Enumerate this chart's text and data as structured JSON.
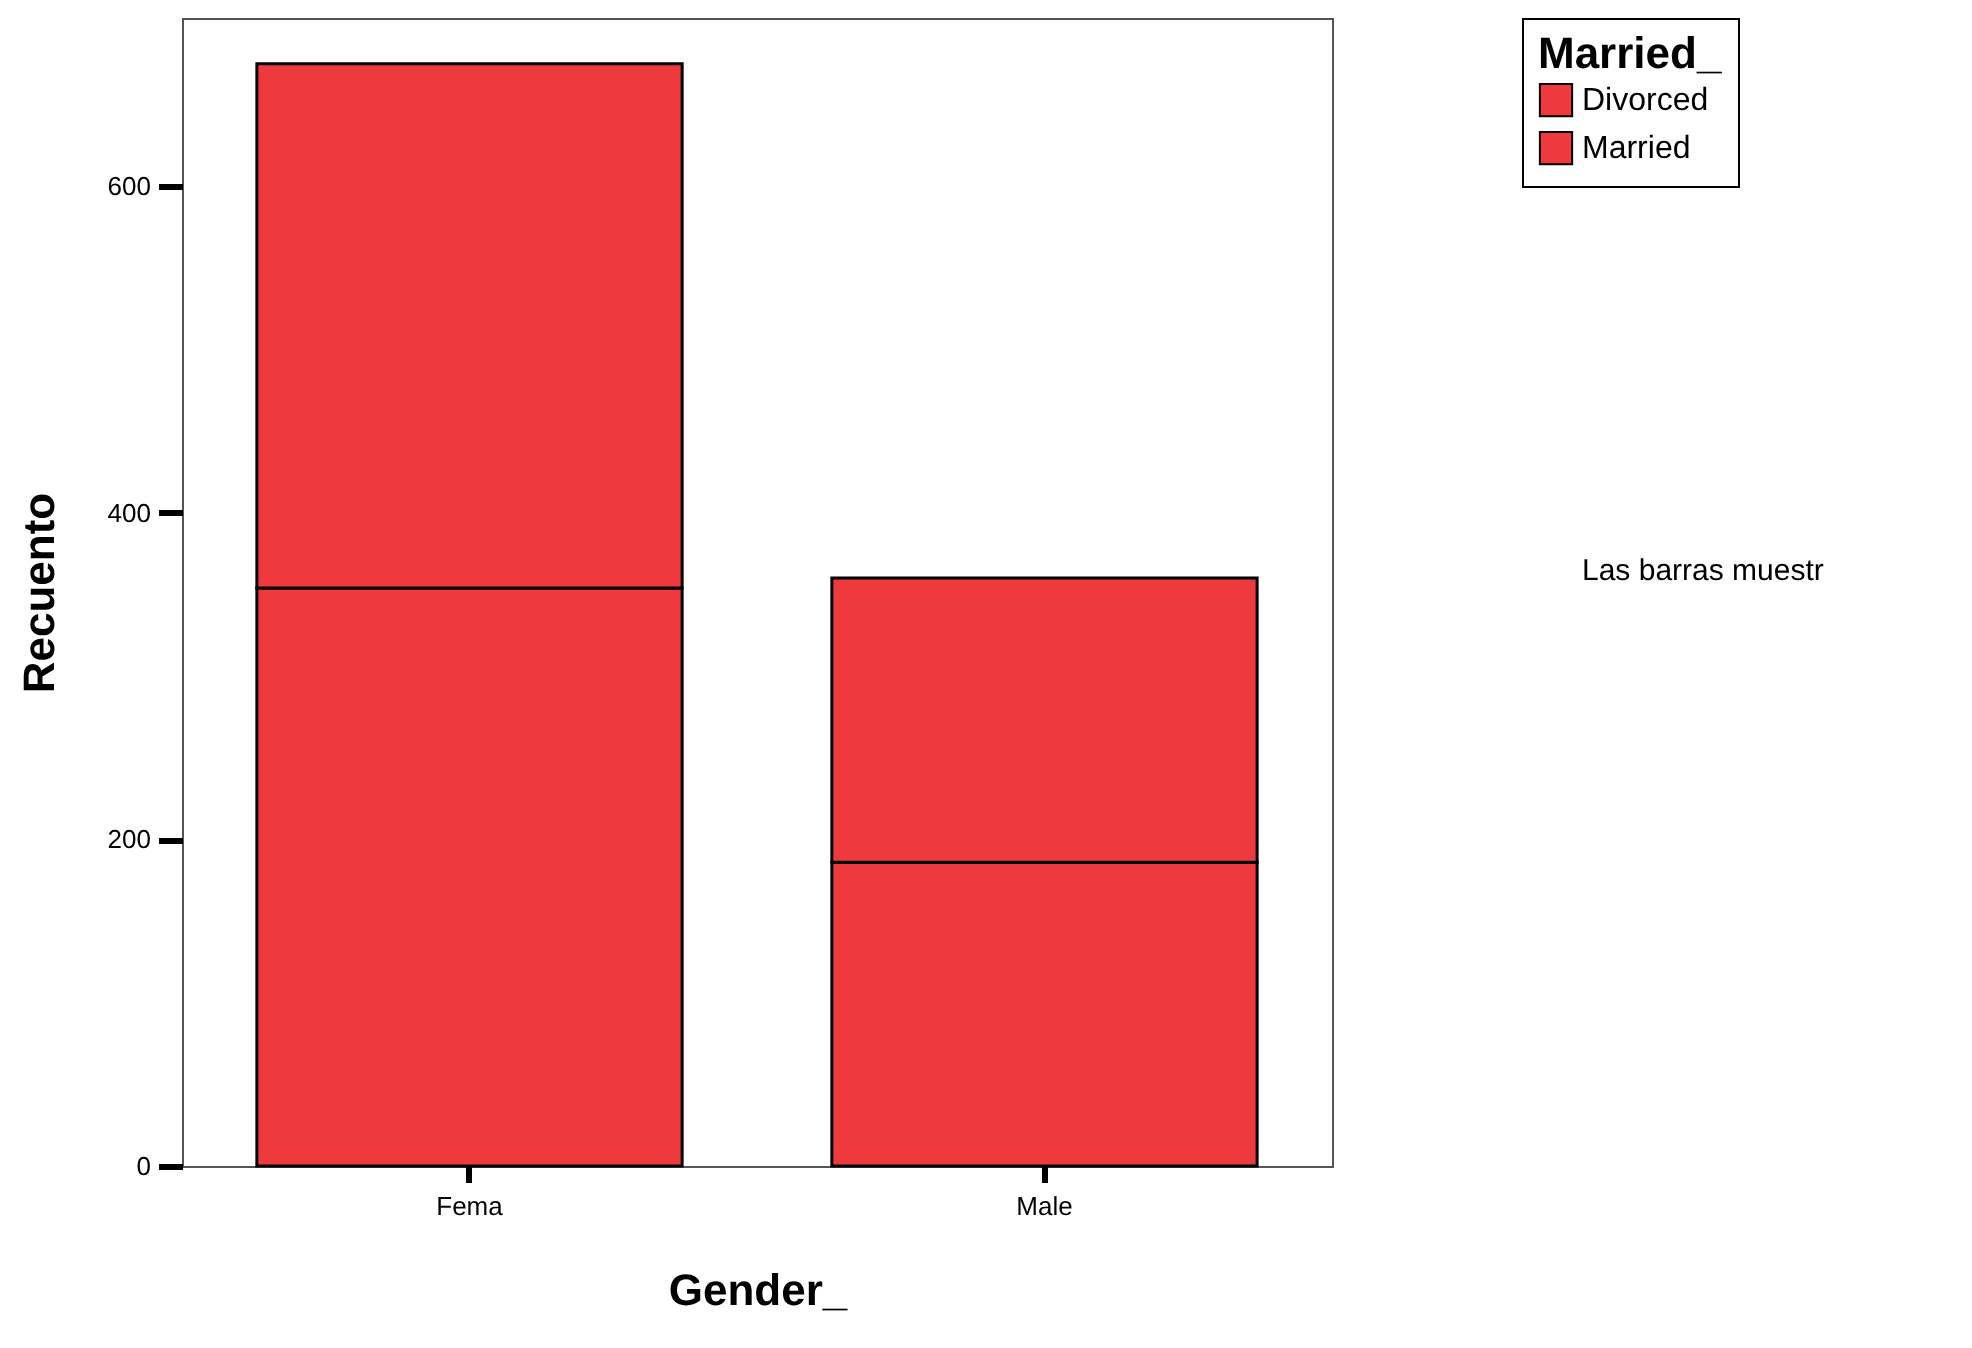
{
  "chart_data": {
    "type": "bar",
    "stacked": true,
    "xlabel": "Gender_",
    "ylabel": "Recuento",
    "legend_title": "Married_",
    "legend": "top right",
    "grid": false,
    "categories": [
      "Fema",
      "Male"
    ],
    "series": [
      {
        "name": "Married",
        "color": "#ee3a3c",
        "values": [
          354,
          186
        ]
      },
      {
        "name": "Divorced",
        "color": "#ee3a3c",
        "values": [
          321,
          174
        ]
      }
    ],
    "ylim": [
      0,
      703
    ],
    "yticks": [
      0,
      200,
      400,
      600
    ],
    "annotations": [
      "Las barras muestr"
    ]
  }
}
